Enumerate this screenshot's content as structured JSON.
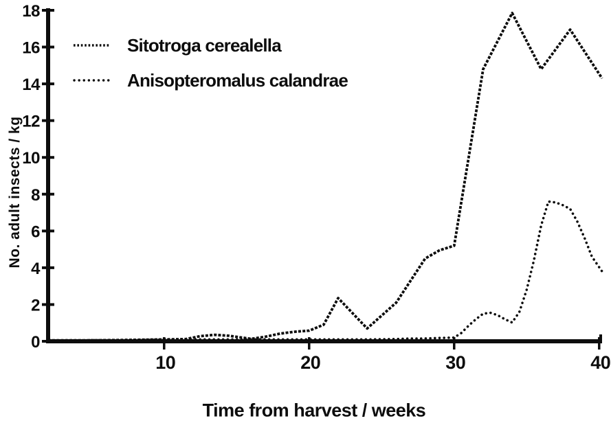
{
  "figure": {
    "background": "#ffffff",
    "ink_color": "#0d0d0d"
  },
  "chart_data": {
    "type": "line",
    "title": "",
    "xlabel": "Time from harvest / weeks",
    "ylabel": "No. adult insects / kg",
    "xlim": [
      2,
      40.2
    ],
    "ylim": [
      0,
      18
    ],
    "x_ticks": [
      10,
      20,
      30,
      40
    ],
    "y_ticks": [
      0,
      2,
      4,
      6,
      8,
      10,
      12,
      14,
      16,
      18
    ],
    "grid": false,
    "legend_position": "top-left",
    "series": [
      {
        "name": "Sitotroga cerealella",
        "style": "dense-dotted",
        "color": "#0d0d0d",
        "points": [
          [
            2,
            0.05
          ],
          [
            4,
            0.05
          ],
          [
            6,
            0.06
          ],
          [
            8,
            0.08
          ],
          [
            10,
            0.1
          ],
          [
            11.5,
            0.12
          ],
          [
            12.5,
            0.28
          ],
          [
            13.5,
            0.35
          ],
          [
            14.5,
            0.3
          ],
          [
            16,
            0.13
          ],
          [
            17,
            0.25
          ],
          [
            18,
            0.42
          ],
          [
            19,
            0.52
          ],
          [
            20,
            0.58
          ],
          [
            21,
            0.9
          ],
          [
            22,
            2.35
          ],
          [
            24,
            0.7
          ],
          [
            26,
            2.1
          ],
          [
            28,
            4.5
          ],
          [
            29,
            4.95
          ],
          [
            30,
            5.2
          ],
          [
            32,
            14.8
          ],
          [
            34,
            17.85
          ],
          [
            36,
            14.8
          ],
          [
            38,
            16.95
          ],
          [
            40.2,
            14.3
          ]
        ]
      },
      {
        "name": "Anisopteromalus calandrae",
        "style": "dotted",
        "color": "#0d0d0d",
        "points": [
          [
            2,
            0.05
          ],
          [
            6,
            0.06
          ],
          [
            10,
            0.08
          ],
          [
            12,
            0.1
          ],
          [
            14,
            0.1
          ],
          [
            16,
            0.1
          ],
          [
            18,
            0.1
          ],
          [
            20,
            0.1
          ],
          [
            22,
            0.1
          ],
          [
            24,
            0.1
          ],
          [
            26,
            0.12
          ],
          [
            27,
            0.15
          ],
          [
            28,
            0.15
          ],
          [
            29,
            0.18
          ],
          [
            30,
            0.2
          ],
          [
            30.5,
            0.45
          ],
          [
            31,
            0.85
          ],
          [
            31.5,
            1.2
          ],
          [
            32,
            1.5
          ],
          [
            32.5,
            1.55
          ],
          [
            33,
            1.42
          ],
          [
            33.5,
            1.2
          ],
          [
            34,
            1.02
          ],
          [
            34.5,
            1.6
          ],
          [
            35,
            2.8
          ],
          [
            35.5,
            4.4
          ],
          [
            36,
            6.3
          ],
          [
            36.5,
            7.6
          ],
          [
            37,
            7.55
          ],
          [
            37.5,
            7.4
          ],
          [
            38,
            7.2
          ],
          [
            38.5,
            6.5
          ],
          [
            39,
            5.6
          ],
          [
            39.5,
            4.6
          ],
          [
            40.2,
            3.8
          ]
        ]
      }
    ]
  }
}
